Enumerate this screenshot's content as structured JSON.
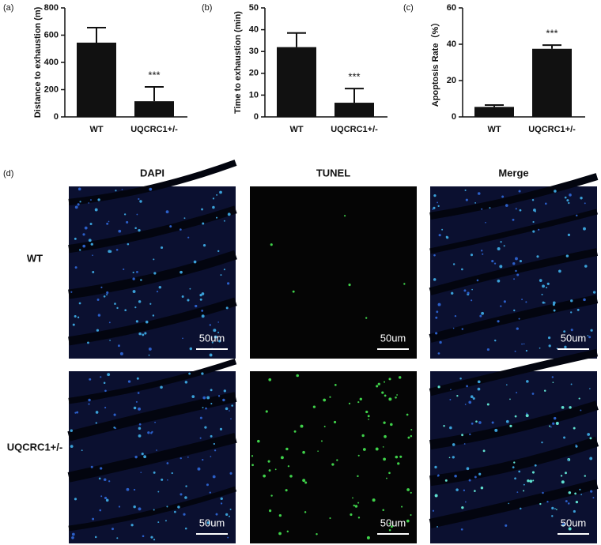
{
  "chart_data": [
    {
      "type": "bar",
      "panel_label": "(a)",
      "ylabel": "Distance to exhaustion (m)",
      "categories": [
        "WT",
        "UQCRC1+/-"
      ],
      "values": [
        545,
        115
      ],
      "errors": [
        110,
        105
      ],
      "annotations": [
        {
          "text": "***",
          "category": 1
        }
      ],
      "ylim": [
        0,
        800
      ],
      "yticks": [
        0,
        200,
        400,
        600,
        800
      ],
      "color": "#111111"
    },
    {
      "type": "bar",
      "panel_label": "(b)",
      "ylabel": "Time to exhaustion (min)",
      "categories": [
        "WT",
        "UQCRC1+/-"
      ],
      "values": [
        32,
        6.5
      ],
      "errors": [
        6.5,
        6.5
      ],
      "annotations": [
        {
          "text": "***",
          "category": 1
        }
      ],
      "ylim": [
        0,
        50
      ],
      "yticks": [
        0,
        10,
        20,
        30,
        40,
        50
      ],
      "color": "#111111"
    },
    {
      "type": "bar",
      "panel_label": "(c)",
      "ylabel": "Apoptosis Rate（%）",
      "categories": [
        "WT",
        "UQCRC1+/-"
      ],
      "values": [
        5.5,
        37.5
      ],
      "errors": [
        1,
        2
      ],
      "annotations": [
        {
          "text": "***",
          "category": 1
        }
      ],
      "ylim": [
        0,
        60
      ],
      "yticks": [
        0,
        20,
        40,
        60
      ],
      "color": "#111111"
    }
  ],
  "figure_d": {
    "panel_label": "(d)",
    "columns": [
      "DAPI",
      "TUNEL",
      "Merge"
    ],
    "rows": [
      "WT",
      "UQCRC1+/-"
    ],
    "scale_bars": [
      [
        "50um",
        "50um",
        "50um"
      ],
      [
        "50um",
        "50um",
        "50um"
      ]
    ]
  }
}
